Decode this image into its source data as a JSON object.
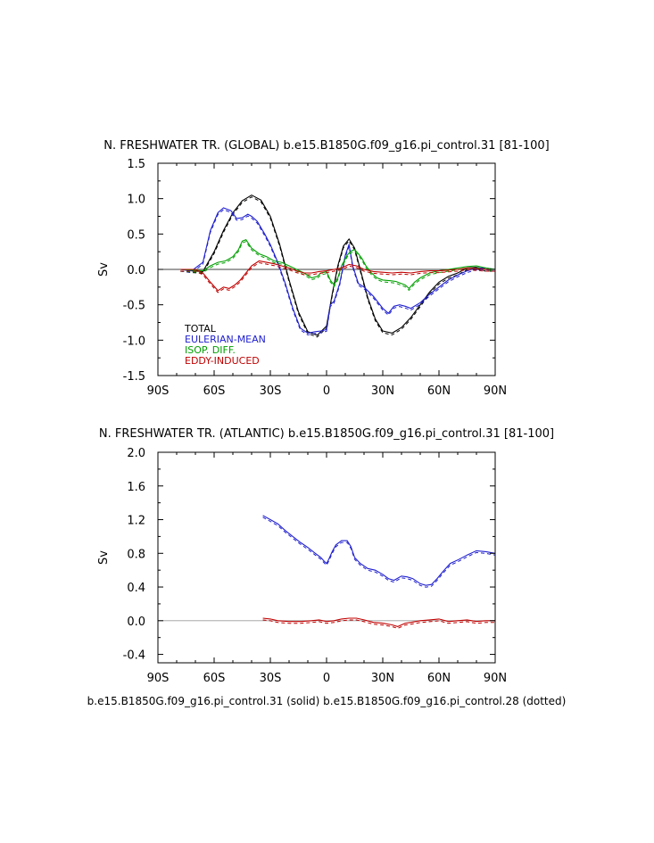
{
  "footer": "b.e15.B1850G.f09_g16.pi_control.31 (solid) b.e15.B1850G.f09_g16.pi_control.28 (dotted)",
  "colors": {
    "total": "#000000",
    "eulerian": "#2020d0",
    "isop": "#00a000",
    "eddy": "#c00000",
    "zero": "#9a9a9a"
  },
  "chart_data": [
    {
      "type": "line",
      "title": "N. FRESHWATER TR. (GLOBAL) b.e15.B1850G.f09_g16.pi_control.31 [81-100]",
      "xlabel": "",
      "ylabel": "Sv",
      "xlim": [
        -90,
        90
      ],
      "ylim": [
        -1.5,
        1.5
      ],
      "xticks": [
        -90,
        -60,
        -30,
        0,
        30,
        60,
        90
      ],
      "xtick_labels": [
        "90S",
        "60S",
        "30S",
        "0",
        "30N",
        "60N",
        "90N"
      ],
      "yticks": [
        -1.5,
        -1.0,
        -0.5,
        0.0,
        0.5,
        1.0,
        1.5
      ],
      "ytick_labels": [
        "-1.5",
        "-1.0",
        "-0.5",
        "0.0",
        "0.5",
        "1.0",
        "1.5"
      ],
      "legend": [
        "TOTAL",
        "EULERIAN-MEAN",
        "ISOP. DIFF.",
        "EDDY-INDUCED"
      ],
      "legend_position": "bottom-left",
      "series": [
        {
          "name": "TOTAL",
          "color": "total",
          "x": [
            -78,
            -72,
            -66,
            -60,
            -55,
            -50,
            -45,
            -40,
            -35,
            -30,
            -25,
            -20,
            -15,
            -10,
            -5,
            0,
            3,
            6,
            9,
            12,
            15,
            18,
            22,
            26,
            30,
            35,
            40,
            45,
            50,
            55,
            60,
            65,
            70,
            75,
            80,
            85,
            90
          ],
          "y": [
            0.0,
            -0.02,
            -0.03,
            0.25,
            0.55,
            0.8,
            0.97,
            1.05,
            0.98,
            0.75,
            0.35,
            -0.15,
            -0.6,
            -0.88,
            -0.93,
            -0.8,
            -0.35,
            0.05,
            0.33,
            0.43,
            0.3,
            0.0,
            -0.4,
            -0.7,
            -0.87,
            -0.9,
            -0.82,
            -0.68,
            -0.5,
            -0.32,
            -0.18,
            -0.1,
            -0.05,
            0.02,
            0.03,
            0.0,
            0.0
          ]
        },
        {
          "name": "EULERIAN-MEAN",
          "color": "eulerian",
          "x": [
            -78,
            -72,
            -66,
            -62,
            -58,
            -55,
            -51,
            -48,
            -45,
            -42,
            -40,
            -37,
            -33,
            -30,
            -26,
            -22,
            -18,
            -14,
            -10,
            -6,
            -3,
            0,
            2,
            4,
            7,
            10,
            12,
            14,
            17,
            20,
            25,
            30,
            33,
            36,
            39,
            42,
            45,
            50,
            55,
            60,
            65,
            70,
            75,
            80,
            85,
            90
          ],
          "y": [
            0.0,
            -0.02,
            0.1,
            0.55,
            0.8,
            0.87,
            0.83,
            0.72,
            0.73,
            0.78,
            0.75,
            0.68,
            0.5,
            0.35,
            0.1,
            -0.2,
            -0.55,
            -0.83,
            -0.9,
            -0.88,
            -0.87,
            -0.85,
            -0.5,
            -0.45,
            -0.2,
            0.2,
            0.35,
            0.05,
            -0.2,
            -0.25,
            -0.38,
            -0.55,
            -0.62,
            -0.52,
            -0.5,
            -0.52,
            -0.55,
            -0.47,
            -0.35,
            -0.25,
            -0.15,
            -0.08,
            -0.02,
            0.02,
            0.02,
            0.0
          ]
        },
        {
          "name": "ISOP. DIFF.",
          "color": "isop",
          "x": [
            -78,
            -66,
            -62,
            -58,
            -54,
            -50,
            -47,
            -45,
            -43,
            -40,
            -36,
            -32,
            -28,
            -24,
            -20,
            -16,
            -12,
            -8,
            -5,
            -3,
            -1,
            0,
            2,
            4,
            6,
            8,
            11,
            13,
            15,
            17,
            19,
            21,
            24,
            27,
            30,
            34,
            37,
            40,
            42,
            44,
            47,
            50,
            55,
            60,
            65,
            70,
            75,
            80,
            85,
            90
          ],
          "y": [
            0.0,
            -0.02,
            0.05,
            0.1,
            0.12,
            0.18,
            0.28,
            0.4,
            0.42,
            0.3,
            0.22,
            0.18,
            0.12,
            0.1,
            0.05,
            0.0,
            -0.05,
            -0.12,
            -0.1,
            -0.05,
            -0.04,
            -0.03,
            -0.15,
            -0.22,
            -0.12,
            0.05,
            0.2,
            0.26,
            0.28,
            0.22,
            0.15,
            0.05,
            -0.05,
            -0.12,
            -0.15,
            -0.16,
            -0.17,
            -0.2,
            -0.22,
            -0.27,
            -0.18,
            -0.12,
            -0.05,
            -0.02,
            0.0,
            0.02,
            0.04,
            0.05,
            0.02,
            0.0
          ]
        },
        {
          "name": "EDDY-INDUCED",
          "color": "eddy",
          "x": [
            -78,
            -70,
            -66,
            -62,
            -58,
            -55,
            -52,
            -49,
            -46,
            -43,
            -40,
            -36,
            -32,
            -28,
            -24,
            -20,
            -16,
            -12,
            -8,
            -4,
            0,
            4,
            8,
            12,
            16,
            20,
            25,
            30,
            35,
            40,
            45,
            50,
            55,
            60,
            65,
            70,
            75,
            80,
            85,
            90
          ],
          "y": [
            0.0,
            0.0,
            -0.05,
            -0.18,
            -0.3,
            -0.25,
            -0.27,
            -0.22,
            -0.15,
            -0.05,
            0.05,
            0.12,
            0.1,
            0.08,
            0.05,
            0.02,
            -0.02,
            -0.05,
            -0.05,
            -0.03,
            -0.02,
            0.0,
            0.02,
            0.07,
            0.05,
            0.0,
            -0.03,
            -0.04,
            -0.05,
            -0.04,
            -0.05,
            -0.03,
            -0.02,
            -0.02,
            -0.01,
            0.0,
            0.02,
            0.01,
            0.0,
            0.0
          ]
        }
      ]
    },
    {
      "type": "line",
      "title": "N. FRESHWATER TR. (ATLANTIC) b.e15.B1850G.f09_g16.pi_control.31 [81-100]",
      "xlabel": "",
      "ylabel": "Sv",
      "xlim": [
        -90,
        90
      ],
      "ylim": [
        -0.5,
        2.0
      ],
      "xticks": [
        -90,
        -60,
        -30,
        0,
        30,
        60,
        90
      ],
      "xtick_labels": [
        "90S",
        "60S",
        "30S",
        "0",
        "30N",
        "60N",
        "90N"
      ],
      "yticks": [
        -0.4,
        0.0,
        0.4,
        0.8,
        1.2,
        1.6,
        2.0
      ],
      "ytick_labels": [
        "-0.4",
        "0.0",
        "0.4",
        "0.8",
        "1.2",
        "1.6",
        "2.0"
      ],
      "series": [
        {
          "color": "eulerian",
          "x": [
            -34,
            -30,
            -26,
            -22,
            -18,
            -14,
            -10,
            -6,
            -3,
            -1,
            0,
            1,
            3,
            5,
            8,
            11,
            13,
            15,
            18,
            22,
            26,
            30,
            33,
            36,
            40,
            43,
            46,
            50,
            53,
            56,
            59,
            62,
            66,
            70,
            75,
            80,
            85,
            90
          ],
          "y": [
            1.25,
            1.2,
            1.15,
            1.07,
            1.0,
            0.93,
            0.87,
            0.8,
            0.75,
            0.7,
            0.68,
            0.72,
            0.82,
            0.9,
            0.95,
            0.95,
            0.88,
            0.75,
            0.68,
            0.62,
            0.6,
            0.55,
            0.5,
            0.48,
            0.53,
            0.52,
            0.5,
            0.44,
            0.42,
            0.43,
            0.5,
            0.58,
            0.68,
            0.72,
            0.78,
            0.83,
            0.82,
            0.8
          ]
        },
        {
          "color": "eddy",
          "x": [
            -34,
            -30,
            -26,
            -20,
            -14,
            -8,
            -4,
            0,
            4,
            8,
            12,
            16,
            20,
            25,
            30,
            35,
            38,
            40,
            42,
            45,
            50,
            55,
            60,
            65,
            70,
            75,
            80,
            85,
            90
          ],
          "y": [
            0.03,
            0.02,
            0.0,
            -0.01,
            -0.01,
            0.0,
            0.01,
            -0.01,
            0.0,
            0.02,
            0.03,
            0.03,
            0.01,
            -0.02,
            -0.03,
            -0.05,
            -0.07,
            -0.05,
            -0.03,
            -0.02,
            0.0,
            0.01,
            0.02,
            -0.01,
            0.0,
            0.01,
            -0.01,
            0.0,
            0.0
          ]
        }
      ]
    }
  ]
}
